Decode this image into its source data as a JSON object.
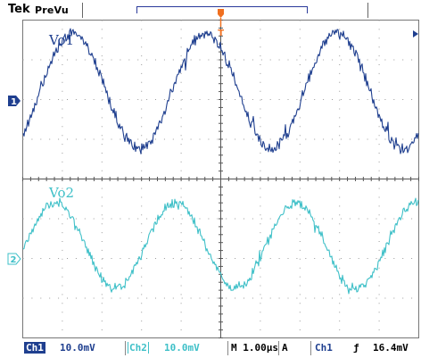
{
  "header": {
    "brand": "Tek",
    "mode": "PreVu"
  },
  "traces": {
    "ch1": {
      "label": "Vo1",
      "marker": "1",
      "color": "#1f3f8f"
    },
    "ch2": {
      "label": "Vo2",
      "marker": "2",
      "color": "#3fc0c8"
    }
  },
  "trigger": {
    "marker": "T",
    "color": "#f07020"
  },
  "status_bar": {
    "ch1_label": "Ch1",
    "ch1_scale": "10.0mV",
    "ch2_label": "Ch2",
    "ch2_scale": "10.0mV",
    "timebase": "M 1.00µs",
    "acq": "A",
    "trigger_source": "Ch1",
    "trigger_edge": "ƒ",
    "trigger_level": "16.4mV"
  }
}
